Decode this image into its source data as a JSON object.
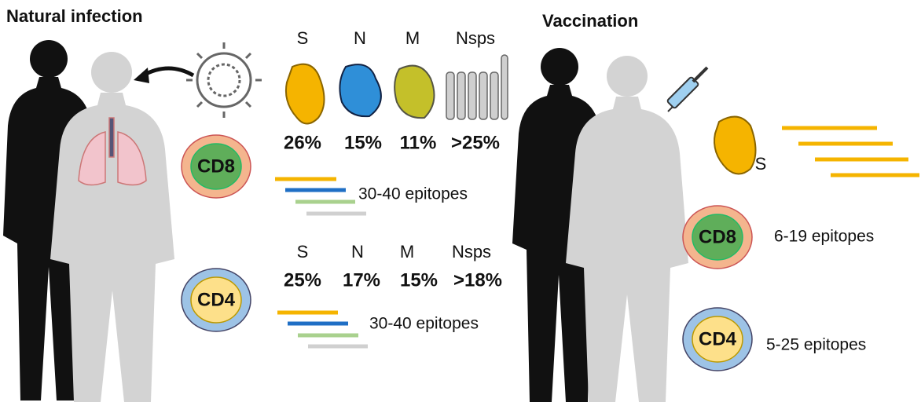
{
  "natural_infection": {
    "title": "Natural infection",
    "cd8": {
      "label": "CD8",
      "proteins": [
        "S",
        "N",
        "M",
        "Nsps"
      ],
      "percentages": [
        "26%",
        "15%",
        "11%",
        ">25%"
      ],
      "epitopes": "30-40 epitopes"
    },
    "cd4": {
      "label": "CD4",
      "proteins": [
        "S",
        "N",
        "M",
        "Nsps"
      ],
      "percentages": [
        "25%",
        "17%",
        "15%",
        ">18%"
      ],
      "epitopes": "30-40 epitopes"
    }
  },
  "vaccination": {
    "title": "Vaccination",
    "protein": "S",
    "cd8": {
      "label": "CD8",
      "epitopes": "6-19 epitopes"
    },
    "cd4": {
      "label": "CD4",
      "epitopes": "5-25 epitopes"
    }
  }
}
